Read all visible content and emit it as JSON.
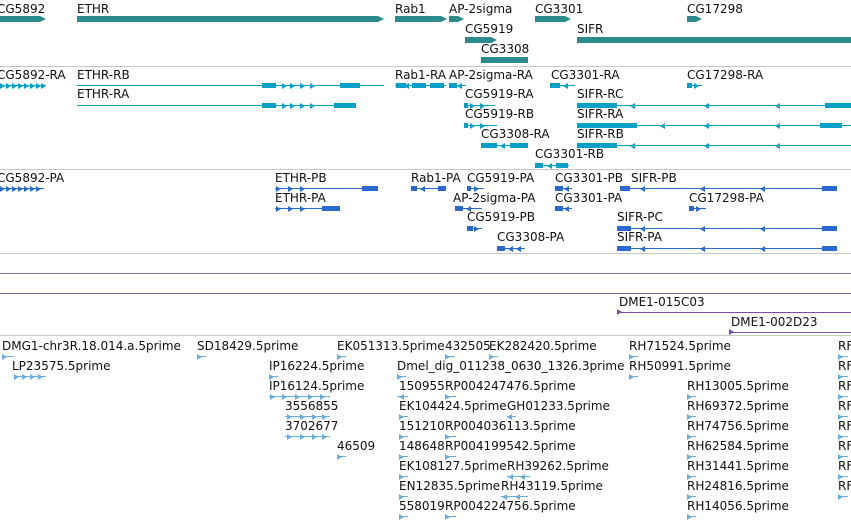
{
  "track_genes": {
    "labels": [
      "CG5892",
      "ETHR",
      "Rab1",
      "AP-2sigma",
      "CG3301",
      "CG17298",
      "CG5919",
      "SIFR",
      "CG3308"
    ],
    "color": "#2a8c8c"
  },
  "track_rna": {
    "labels": [
      "CG5892-RA",
      "ETHR-RB",
      "ETHR-RA",
      "Rab1-RA",
      "AP-2sigma-RA",
      "CG3301-RA",
      "CG17298-RA",
      "CG5919-RA",
      "SIFR-RC",
      "CG5919-RB",
      "SIFR-RA",
      "CG3308-RA",
      "SIFR-RB",
      "CG3301-RB"
    ],
    "color": "#00a0c8"
  },
  "track_protein": {
    "labels": [
      "CG5892-PA",
      "ETHR-PB",
      "Rab1-PA",
      "CG5919-PA",
      "CG3301-PB",
      "SIFR-PB",
      "ETHR-PA",
      "AP-2sigma-PA",
      "CG3301-PA",
      "CG17298-PA",
      "CG5919-PB",
      "SIFR-PC",
      "CG3308-PA",
      "SIFR-PA"
    ],
    "color": "#2a6ad0"
  },
  "track_markers": {
    "labels": [
      "DME1-015C03",
      "DME1-002D23"
    ],
    "color": "#7a4fb0"
  },
  "track_est": {
    "labels": [
      "DMG1-chr3R.18.014.a.5prime",
      "SD18429.5prime",
      "EK051313.5prime",
      "432505",
      "EK282420.5prime",
      "RH71524.5prime",
      "LP23575.5prime",
      "IP16224.5prime",
      "Dmel_dig_011238_0630_1326.3prime",
      "RH50991.5prime",
      "IP16124.5prime",
      "150955",
      "RP004247476.5prime",
      "RH13005.5prime",
      "3556855",
      "EK104424.5prime",
      "GH01233.5prime",
      "RH69372.5prime",
      "3702677",
      "151210",
      "RP004036113.5prime",
      "RH74756.5prime",
      "46509",
      "148648",
      "RP004199542.5prime",
      "RH62584.5prime",
      "EK108127.5prime",
      "RH39262.5prime",
      "RH31441.5prime",
      "EN12835.5prime",
      "RH43119.5prime",
      "RH24816.5prime",
      "558019",
      "RP004224756.5prime",
      "RH14056.5prime",
      "RF",
      "RF",
      "RF",
      "RF",
      "RF",
      "RF",
      "RF",
      "RF"
    ],
    "color": "#6aaee0"
  }
}
